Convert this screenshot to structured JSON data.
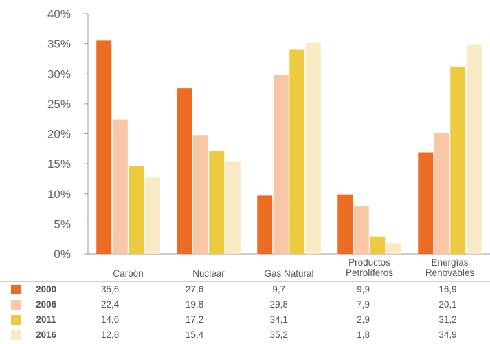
{
  "chart_data": {
    "type": "bar",
    "categories": [
      "Carbón",
      "Nuclear",
      "Gas Natural",
      "Productos Petrolíferos",
      "Energías Renovables"
    ],
    "category_lines": [
      [
        "Carbón"
      ],
      [
        "Nuclear"
      ],
      [
        "Gas Natural"
      ],
      [
        "Productos",
        "Petrolíferos"
      ],
      [
        "Energías",
        "Renovables"
      ]
    ],
    "series": [
      {
        "name": "2000",
        "color": "#eb6c22",
        "values": [
          35.6,
          27.6,
          9.7,
          9.9,
          16.9
        ]
      },
      {
        "name": "2006",
        "color": "#f7c7a8",
        "values": [
          22.4,
          19.8,
          29.8,
          7.9,
          20.1
        ]
      },
      {
        "name": "2011",
        "color": "#eccb40",
        "values": [
          14.6,
          17.2,
          34.1,
          2.9,
          31.2
        ]
      },
      {
        "name": "2016",
        "color": "#f7eac4",
        "values": [
          12.8,
          15.4,
          35.2,
          1.8,
          34.9
        ]
      }
    ],
    "ylim": [
      0,
      40
    ],
    "yticks": [
      "0%",
      "5%",
      "10%",
      "15%",
      "20%",
      "25%",
      "30%",
      "35%",
      "40%"
    ],
    "table": [
      [
        "35,6",
        "27,6",
        "9,7",
        "9,9",
        "16,9"
      ],
      [
        "22,4",
        "19,8",
        "29,8",
        "7,9",
        "20,1"
      ],
      [
        "14,6",
        "17,2",
        "34,1",
        "2,9",
        "31,2"
      ],
      [
        "12,8",
        "15,4",
        "35,2",
        "1,8",
        "34,9"
      ]
    ]
  }
}
